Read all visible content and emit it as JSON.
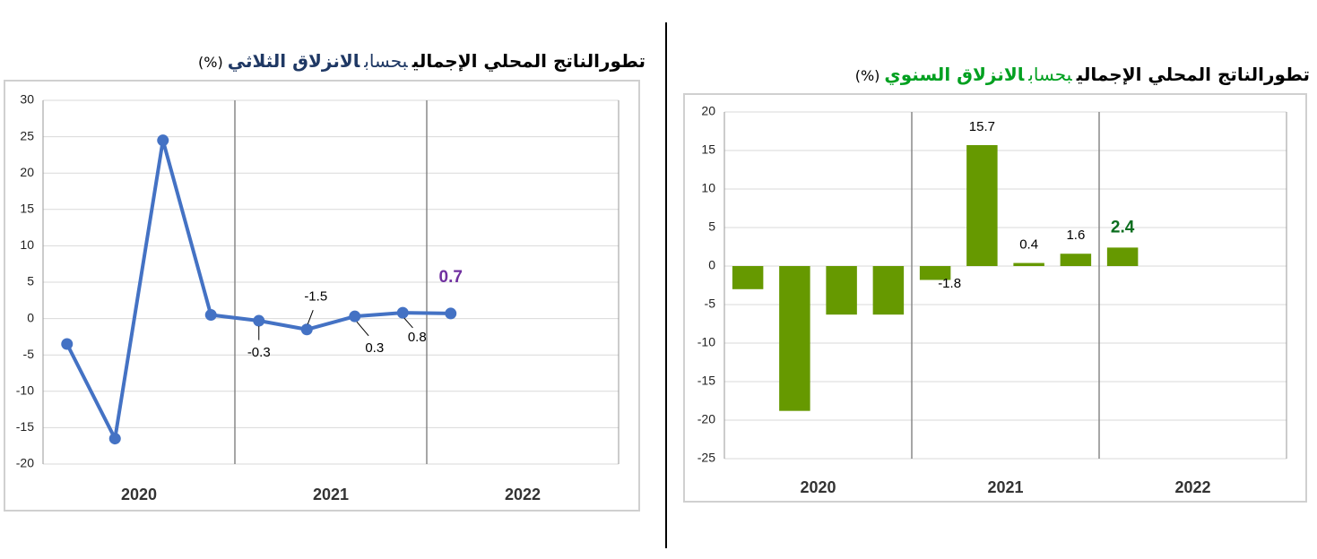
{
  "chart_data": [
    {
      "type": "line",
      "title": [
        "تطورالناتج المحلي الإجمالي",
        "بحساب",
        "الانزلاق الثلاثي",
        "(%)"
      ],
      "title_colors": [
        "#000000",
        "#1f3864",
        "#1f3864",
        "#000000"
      ],
      "categories": [
        null,
        null,
        null,
        null,
        null,
        null,
        null,
        null,
        null,
        null,
        null,
        null
      ],
      "groups": [
        "2020",
        "2021",
        "2022"
      ],
      "values": [
        -3.5,
        -16.5,
        24.5,
        0.5,
        -0.3,
        -1.5,
        0.3,
        0.8,
        0.7,
        null,
        null,
        null
      ],
      "value_labels": [
        null,
        null,
        null,
        null,
        "-0.3",
        "-1.5",
        "0.3",
        "0.8",
        "0.7",
        null,
        null,
        null
      ],
      "color": "#4472c4",
      "highlight_color": "#7030a0",
      "ylim": [
        -20,
        30
      ],
      "yticks": [
        -20,
        -15,
        -10,
        -5,
        0,
        5,
        10,
        15,
        20,
        25,
        30
      ],
      "grid": true
    },
    {
      "type": "bar",
      "title": [
        "تطورالناتج المحلي الإجمالي",
        "بحساب",
        "الانزلاق السنوي",
        "(%)"
      ],
      "title_colors": [
        "#000000",
        "#00a020",
        "#00a020",
        "#000000"
      ],
      "categories": [
        null,
        null,
        null,
        null,
        null,
        null,
        null,
        null,
        null,
        null,
        null,
        null
      ],
      "groups": [
        "2020",
        "2021",
        "2022"
      ],
      "values": [
        -3.0,
        -18.8,
        -6.3,
        -6.3,
        -1.8,
        15.7,
        0.4,
        1.6,
        2.4,
        null,
        null,
        null
      ],
      "value_labels": [
        null,
        null,
        null,
        null,
        "-1.8",
        "15.7",
        "0.4",
        "1.6",
        "2.4",
        null,
        null,
        null
      ],
      "color": "#669900",
      "highlight_color": "#0b6e1f",
      "ylim": [
        -25,
        20
      ],
      "yticks": [
        -25,
        -20,
        -15,
        -10,
        -5,
        0,
        5,
        10,
        15,
        20
      ],
      "grid": true
    }
  ]
}
